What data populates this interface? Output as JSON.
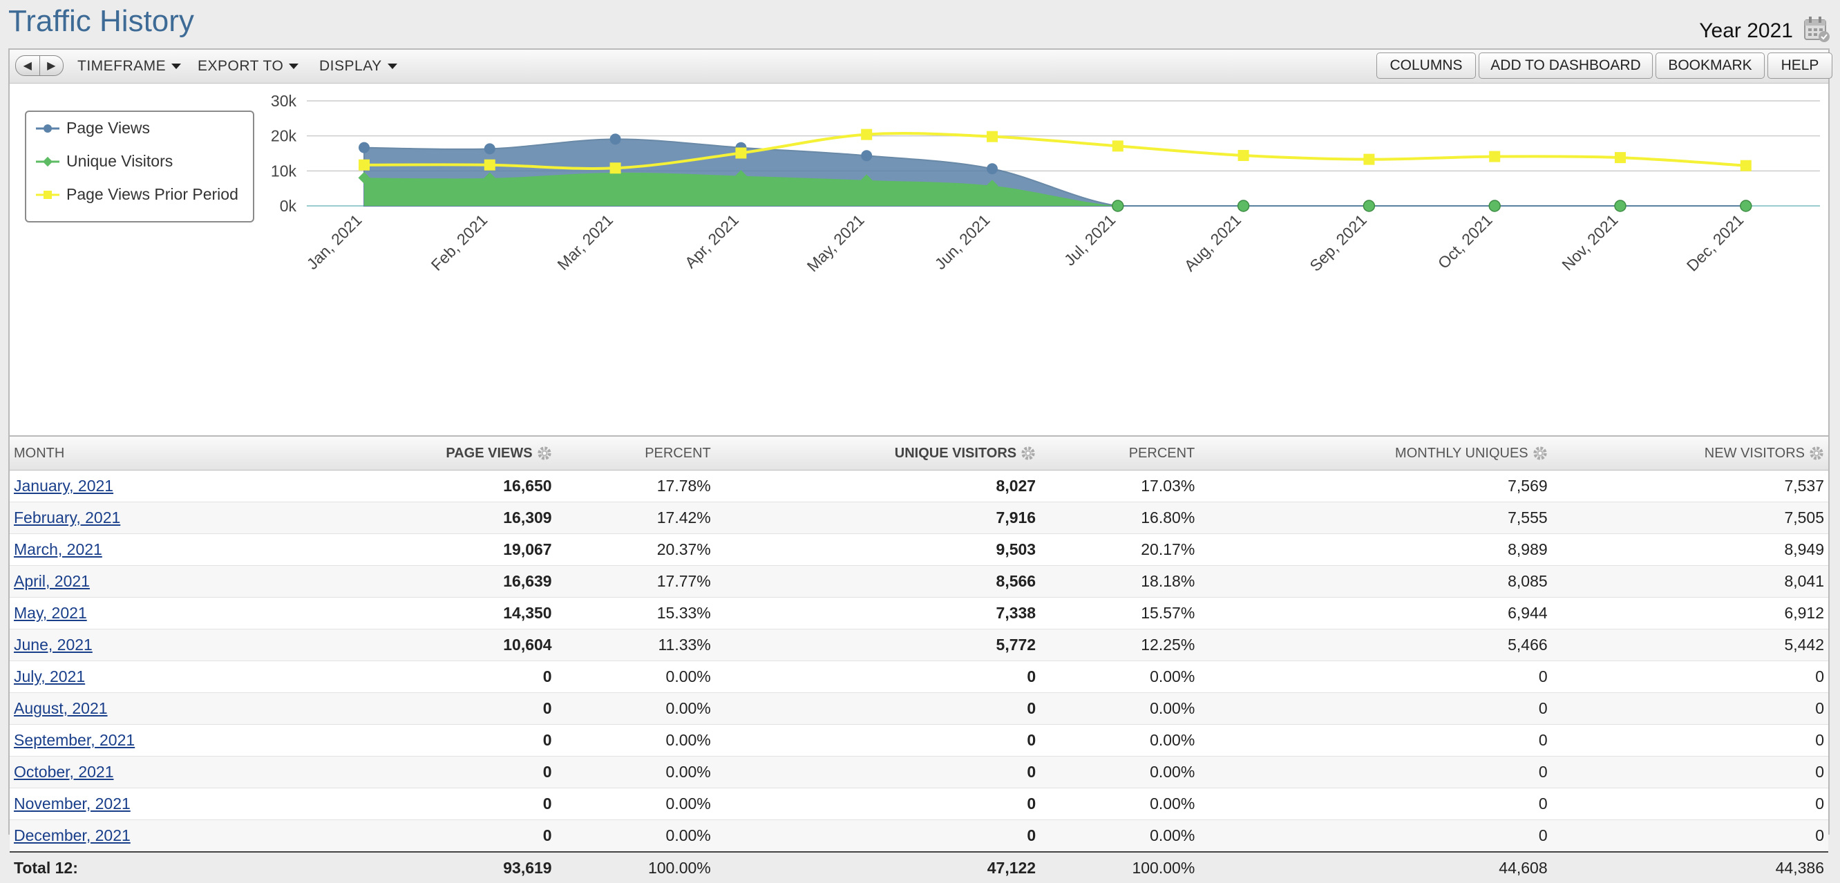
{
  "header": {
    "title": "Traffic History",
    "year_label": "Year 2021"
  },
  "toolbar": {
    "menus": [
      "TIMEFRAME",
      "EXPORT TO",
      "DISPLAY"
    ],
    "buttons": [
      "COLUMNS",
      "ADD TO DASHBOARD",
      "BOOKMARK",
      "HELP"
    ]
  },
  "chart_data": {
    "type": "area",
    "categories": [
      "Jan, 2021",
      "Feb, 2021",
      "Mar, 2021",
      "Apr, 2021",
      "May, 2021",
      "Jun, 2021",
      "Jul, 2021",
      "Aug, 2021",
      "Sep, 2021",
      "Oct, 2021",
      "Nov, 2021",
      "Dec, 2021"
    ],
    "y_ticks": [
      "0k",
      "10k",
      "20k",
      "30k"
    ],
    "ylim": [
      0,
      30000
    ],
    "legend_position": "top-left",
    "series": [
      {
        "name": "Page Views",
        "type": "area",
        "color": "#5b82a8",
        "values": [
          16650,
          16309,
          19067,
          16639,
          14350,
          10604,
          0,
          0,
          0,
          0,
          0,
          0
        ]
      },
      {
        "name": "Unique Visitors",
        "type": "area",
        "color": "#5dbb63",
        "values": [
          8027,
          7916,
          9503,
          8566,
          7338,
          5772,
          0,
          0,
          0,
          0,
          0,
          0
        ]
      },
      {
        "name": "Page Views Prior Period",
        "type": "line",
        "color": "#f4f136",
        "values": [
          11700,
          11700,
          10800,
          15100,
          20400,
          19800,
          17100,
          14400,
          13300,
          14100,
          13800,
          11500
        ]
      }
    ]
  },
  "table": {
    "headers": [
      "MONTH",
      "PAGE VIEWS",
      "PERCENT",
      "UNIQUE VISITORS",
      "PERCENT",
      "MONTHLY UNIQUES",
      "NEW VISITORS"
    ],
    "rows": [
      [
        "January, 2021",
        "16,650",
        "17.78%",
        "8,027",
        "17.03%",
        "7,569",
        "7,537"
      ],
      [
        "February, 2021",
        "16,309",
        "17.42%",
        "7,916",
        "16.80%",
        "7,555",
        "7,505"
      ],
      [
        "March, 2021",
        "19,067",
        "20.37%",
        "9,503",
        "20.17%",
        "8,989",
        "8,949"
      ],
      [
        "April, 2021",
        "16,639",
        "17.77%",
        "8,566",
        "18.18%",
        "8,085",
        "8,041"
      ],
      [
        "May, 2021",
        "14,350",
        "15.33%",
        "7,338",
        "15.57%",
        "6,944",
        "6,912"
      ],
      [
        "June, 2021",
        "10,604",
        "11.33%",
        "5,772",
        "12.25%",
        "5,466",
        "5,442"
      ],
      [
        "July, 2021",
        "0",
        "0.00%",
        "0",
        "0.00%",
        "0",
        "0"
      ],
      [
        "August, 2021",
        "0",
        "0.00%",
        "0",
        "0.00%",
        "0",
        "0"
      ],
      [
        "September, 2021",
        "0",
        "0.00%",
        "0",
        "0.00%",
        "0",
        "0"
      ],
      [
        "October, 2021",
        "0",
        "0.00%",
        "0",
        "0.00%",
        "0",
        "0"
      ],
      [
        "November, 2021",
        "0",
        "0.00%",
        "0",
        "0.00%",
        "0",
        "0"
      ],
      [
        "December, 2021",
        "0",
        "0.00%",
        "0",
        "0.00%",
        "0",
        "0"
      ]
    ],
    "total": [
      "Total 12:",
      "93,619",
      "100.00%",
      "47,122",
      "100.00%",
      "44,608",
      "44,386"
    ]
  },
  "icons": {
    "calendar": "calendar-icon",
    "gear": "gear-icon",
    "prev": "prev-arrow-icon",
    "next": "next-arrow-icon"
  }
}
